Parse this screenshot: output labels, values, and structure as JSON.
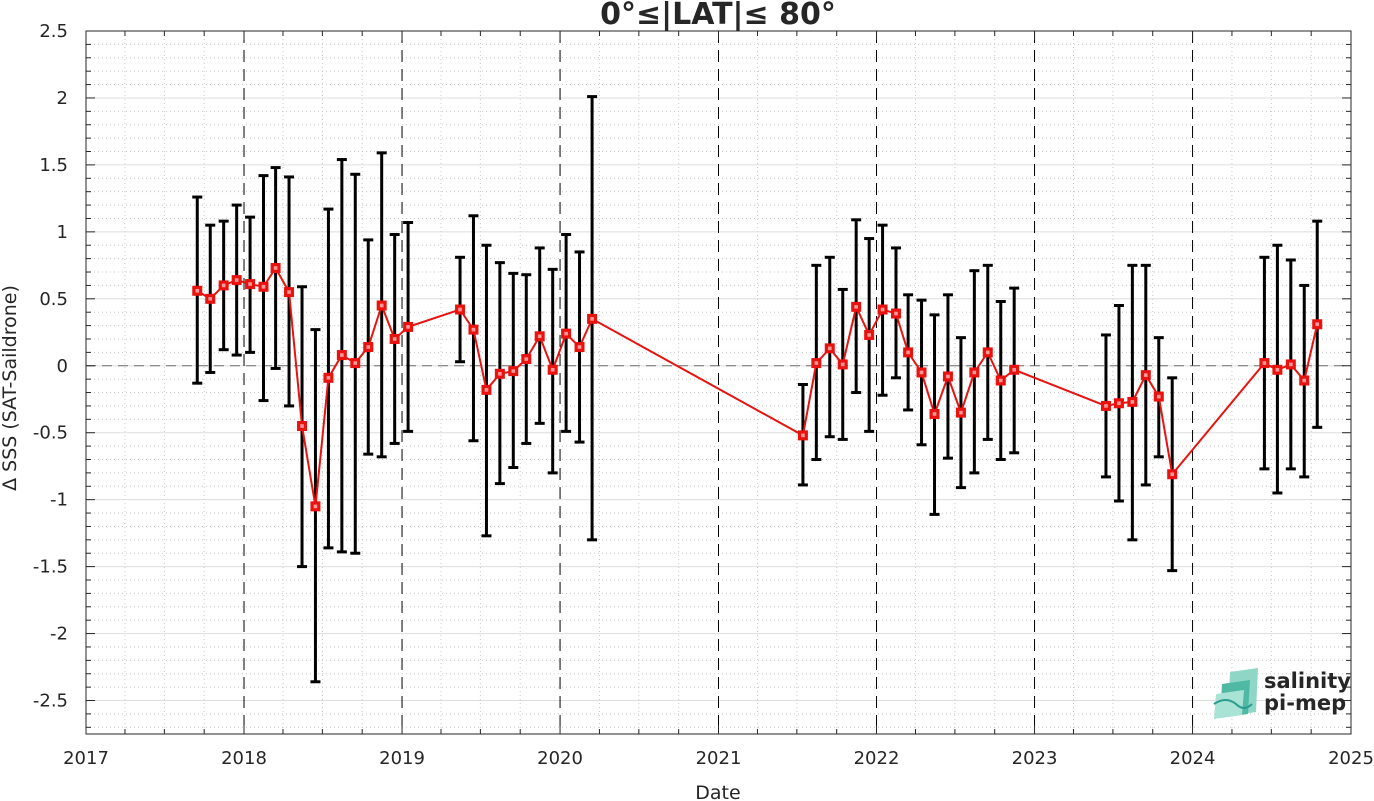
{
  "chart_data": {
    "type": "line",
    "title": "0°≤|LAT|≤ 80°",
    "xlabel": "Date",
    "ylabel": "Δ SSS (SAT-Saildrone)",
    "xlim": [
      "2017-01-01",
      "2025-01-01"
    ],
    "ylim": [
      -2.75,
      2.5
    ],
    "xticks": [
      "2017",
      "2018",
      "2019",
      "2020",
      "2021",
      "2022",
      "2023",
      "2024",
      "2025"
    ],
    "yticks": [
      "2.5",
      "2",
      "1.5",
      "1",
      "0.5",
      "0",
      "-0.5",
      "-1",
      "-1.5",
      "-2",
      "-2.5"
    ],
    "grid": true,
    "series_color": "#e8120f",
    "errorbar_color": "#000000",
    "points": [
      {
        "date": "2017-09-15",
        "y": 0.56,
        "lo": -0.13,
        "hi": 1.26
      },
      {
        "date": "2017-10-15",
        "y": 0.5,
        "lo": -0.05,
        "hi": 1.05
      },
      {
        "date": "2017-11-15",
        "y": 0.6,
        "lo": 0.12,
        "hi": 1.08
      },
      {
        "date": "2017-12-15",
        "y": 0.64,
        "lo": 0.08,
        "hi": 1.2
      },
      {
        "date": "2018-01-15",
        "y": 0.61,
        "lo": 0.1,
        "hi": 1.11
      },
      {
        "date": "2018-02-15",
        "y": 0.59,
        "lo": -0.26,
        "hi": 1.42
      },
      {
        "date": "2018-03-15",
        "y": 0.73,
        "lo": -0.02,
        "hi": 1.48
      },
      {
        "date": "2018-04-15",
        "y": 0.55,
        "lo": -0.3,
        "hi": 1.41
      },
      {
        "date": "2018-05-15",
        "y": -0.45,
        "lo": -1.5,
        "hi": 0.59
      },
      {
        "date": "2018-06-15",
        "y": -1.05,
        "lo": -2.36,
        "hi": 0.27
      },
      {
        "date": "2018-07-15",
        "y": -0.09,
        "lo": -1.36,
        "hi": 1.17
      },
      {
        "date": "2018-08-15",
        "y": 0.08,
        "lo": -1.39,
        "hi": 1.54
      },
      {
        "date": "2018-09-15",
        "y": 0.02,
        "lo": -1.4,
        "hi": 1.43
      },
      {
        "date": "2018-10-15",
        "y": 0.14,
        "lo": -0.66,
        "hi": 0.94
      },
      {
        "date": "2018-11-15",
        "y": 0.45,
        "lo": -0.68,
        "hi": 1.59
      },
      {
        "date": "2018-12-15",
        "y": 0.2,
        "lo": -0.58,
        "hi": 0.98
      },
      {
        "date": "2019-01-15",
        "y": 0.29,
        "lo": -0.49,
        "hi": 1.07
      },
      {
        "date": "2019-05-15",
        "y": 0.42,
        "lo": 0.03,
        "hi": 0.81
      },
      {
        "date": "2019-06-15",
        "y": 0.27,
        "lo": -0.56,
        "hi": 1.12
      },
      {
        "date": "2019-07-15",
        "y": -0.18,
        "lo": -1.27,
        "hi": 0.9
      },
      {
        "date": "2019-08-15",
        "y": -0.06,
        "lo": -0.88,
        "hi": 0.77
      },
      {
        "date": "2019-09-15",
        "y": -0.04,
        "lo": -0.76,
        "hi": 0.69
      },
      {
        "date": "2019-10-15",
        "y": 0.05,
        "lo": -0.58,
        "hi": 0.68
      },
      {
        "date": "2019-11-15",
        "y": 0.22,
        "lo": -0.43,
        "hi": 0.88
      },
      {
        "date": "2019-12-15",
        "y": -0.03,
        "lo": -0.8,
        "hi": 0.72
      },
      {
        "date": "2020-01-15",
        "y": 0.24,
        "lo": -0.49,
        "hi": 0.98
      },
      {
        "date": "2020-02-15",
        "y": 0.14,
        "lo": -0.57,
        "hi": 0.85
      },
      {
        "date": "2020-03-15",
        "y": 0.35,
        "lo": -1.3,
        "hi": 2.01
      },
      {
        "date": "2021-07-15",
        "y": -0.52,
        "lo": -0.89,
        "hi": -0.14
      },
      {
        "date": "2021-08-15",
        "y": 0.02,
        "lo": -0.7,
        "hi": 0.75
      },
      {
        "date": "2021-09-15",
        "y": 0.13,
        "lo": -0.53,
        "hi": 0.81
      },
      {
        "date": "2021-10-15",
        "y": 0.01,
        "lo": -0.55,
        "hi": 0.57
      },
      {
        "date": "2021-11-15",
        "y": 0.44,
        "lo": -0.2,
        "hi": 1.09
      },
      {
        "date": "2021-12-15",
        "y": 0.23,
        "lo": -0.49,
        "hi": 0.95
      },
      {
        "date": "2022-01-15",
        "y": 0.42,
        "lo": -0.22,
        "hi": 1.05
      },
      {
        "date": "2022-02-15",
        "y": 0.39,
        "lo": -0.09,
        "hi": 0.88
      },
      {
        "date": "2022-03-15",
        "y": 0.1,
        "lo": -0.33,
        "hi": 0.53
      },
      {
        "date": "2022-04-15",
        "y": -0.05,
        "lo": -0.59,
        "hi": 0.49
      },
      {
        "date": "2022-05-15",
        "y": -0.36,
        "lo": -1.11,
        "hi": 0.38
      },
      {
        "date": "2022-06-15",
        "y": -0.08,
        "lo": -0.69,
        "hi": 0.53
      },
      {
        "date": "2022-07-15",
        "y": -0.35,
        "lo": -0.91,
        "hi": 0.21
      },
      {
        "date": "2022-08-15",
        "y": -0.05,
        "lo": -0.8,
        "hi": 0.71
      },
      {
        "date": "2022-09-15",
        "y": 0.1,
        "lo": -0.55,
        "hi": 0.75
      },
      {
        "date": "2022-10-15",
        "y": -0.11,
        "lo": -0.7,
        "hi": 0.48
      },
      {
        "date": "2022-11-15",
        "y": -0.03,
        "lo": -0.65,
        "hi": 0.58
      },
      {
        "date": "2023-06-15",
        "y": -0.3,
        "lo": -0.83,
        "hi": 0.23
      },
      {
        "date": "2023-07-15",
        "y": -0.28,
        "lo": -1.01,
        "hi": 0.45
      },
      {
        "date": "2023-08-15",
        "y": -0.27,
        "lo": -1.3,
        "hi": 0.75
      },
      {
        "date": "2023-09-15",
        "y": -0.07,
        "lo": -0.89,
        "hi": 0.75
      },
      {
        "date": "2023-10-15",
        "y": -0.23,
        "lo": -0.68,
        "hi": 0.21
      },
      {
        "date": "2023-11-15",
        "y": -0.81,
        "lo": -1.53,
        "hi": -0.09
      },
      {
        "date": "2024-06-15",
        "y": 0.02,
        "lo": -0.77,
        "hi": 0.81
      },
      {
        "date": "2024-07-15",
        "y": -0.03,
        "lo": -0.95,
        "hi": 0.9
      },
      {
        "date": "2024-08-15",
        "y": 0.01,
        "lo": -0.77,
        "hi": 0.79
      },
      {
        "date": "2024-09-15",
        "y": -0.11,
        "lo": -0.83,
        "hi": 0.6
      },
      {
        "date": "2024-10-15",
        "y": 0.31,
        "lo": -0.46,
        "hi": 1.08
      }
    ]
  },
  "logo": {
    "line1": "salinity",
    "line2": "pi-mep",
    "color": "#1f9d8f"
  }
}
